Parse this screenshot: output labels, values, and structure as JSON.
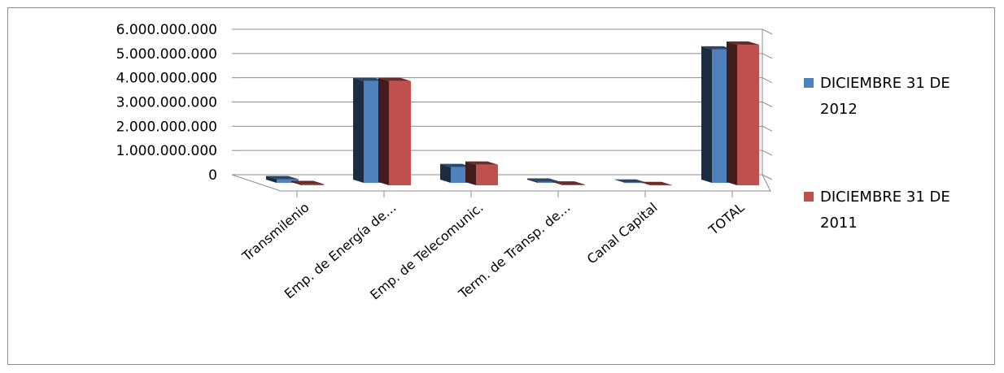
{
  "chart_data": {
    "type": "bar",
    "title": "",
    "xlabel": "",
    "ylabel": "",
    "ylim": [
      0,
      6000000000
    ],
    "y_ticks": [
      "0",
      "1.000.000.000",
      "2.000.000.000",
      "3.000.000.000",
      "4.000.000.000",
      "5.000.000.000",
      "6.000.000.000"
    ],
    "categories": [
      "Transmilenio",
      "Emp. de Energía de…",
      "Emp. de Telecomunic.",
      "Term. de Transp. de…",
      "Canal Capital",
      "TOTAL"
    ],
    "series": [
      {
        "name": "DICIEMBRE 31 DE 2012",
        "color": "#4f81bd",
        "values": [
          150000000,
          4200000000,
          650000000,
          50000000,
          10000000,
          5500000000
        ]
      },
      {
        "name": "DICIEMBRE 31 DE 2011",
        "color": "#c0504d",
        "values": [
          50000000,
          4300000000,
          850000000,
          30000000,
          10000000,
          5800000000
        ]
      }
    ],
    "grid": true,
    "legend_position": "right",
    "style": "3d-clustered-column"
  }
}
